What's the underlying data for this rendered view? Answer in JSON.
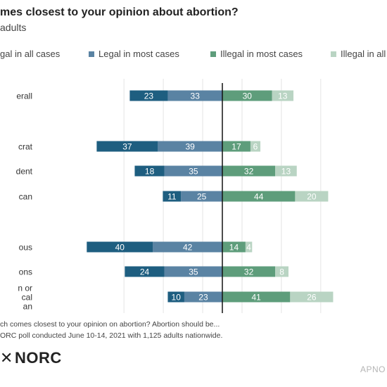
{
  "header": {
    "title": "mes closest to your opinion about abortion?",
    "subtitle": "adults"
  },
  "legend": [
    {
      "label": "gal in all cases",
      "color": "#1e5e80"
    },
    {
      "label": "Legal in most cases",
      "color": "#5a83a3"
    },
    {
      "label": "Illegal in most cases",
      "color": "#5e9d7b"
    },
    {
      "label": "Illegal in all c",
      "color": "#b9d4c3"
    }
  ],
  "chart_data": {
    "type": "bar",
    "orientation": "horizontal-diverging",
    "categories": [
      "erall",
      "crat",
      "dent",
      "can",
      "ous",
      "ons",
      "n or\ncal\nan"
    ],
    "series": [
      {
        "name": "gal in all cases",
        "side": "left",
        "color": "#1e5e80",
        "values": [
          23,
          37,
          18,
          11,
          40,
          24,
          10
        ]
      },
      {
        "name": "Legal in most cases",
        "side": "left",
        "color": "#5a83a3",
        "values": [
          33,
          39,
          35,
          25,
          42,
          35,
          23
        ]
      },
      {
        "name": "Illegal in most cases",
        "side": "right",
        "color": "#5e9d7b",
        "values": [
          30,
          17,
          32,
          44,
          14,
          32,
          41
        ]
      },
      {
        "name": "Illegal in all c",
        "side": "right",
        "color": "#b9d4c3",
        "values": [
          13,
          6,
          13,
          20,
          4,
          8,
          26
        ]
      }
    ],
    "grid": true,
    "legend_position": "top"
  },
  "footer": {
    "question_note": "ch comes closest to your opinion on abortion? Abortion should be...",
    "source_note": "ORC poll conducted June 10-14, 2021 with 1,125 adults nationwide.",
    "logo_mark": "✕",
    "logo_text": "NORC",
    "credit": "APNO"
  }
}
